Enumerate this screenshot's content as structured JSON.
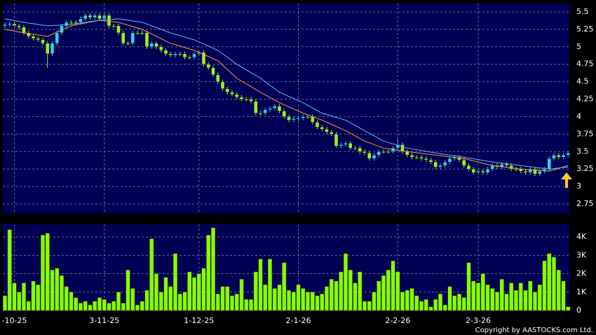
{
  "chart_data": [
    {
      "type": "candlestick",
      "open": [
        5.3,
        5.32,
        5.33,
        5.3,
        5.28,
        5.2,
        5.15,
        5.12,
        5.1,
        5.05,
        4.9,
        5.05,
        5.2,
        5.3,
        5.35,
        5.35,
        5.35,
        5.4,
        5.45,
        5.42,
        5.45,
        5.4,
        5.45,
        5.3,
        5.3,
        5.2,
        5.05,
        5.05,
        5.2,
        5.2,
        5.2,
        5.0,
        5.05,
        5.0,
        4.95,
        4.9,
        4.88,
        4.9,
        4.9,
        4.85,
        4.85,
        4.9,
        4.92,
        4.75,
        4.7,
        4.6,
        4.5,
        4.4,
        4.35,
        4.32,
        4.28,
        4.25,
        4.25,
        4.22,
        4.05,
        4.05,
        4.1,
        4.12,
        4.15,
        4.08,
        4.0,
        3.95,
        3.97,
        3.98,
        4.0,
        4.0,
        3.92,
        3.85,
        3.82,
        3.78,
        3.75,
        3.58,
        3.6,
        3.62,
        3.55,
        3.55,
        3.5,
        3.48,
        3.4,
        3.45,
        3.5,
        3.5,
        3.5,
        3.55,
        3.6,
        3.5,
        3.45,
        3.42,
        3.42,
        3.4,
        3.38,
        3.35,
        3.28,
        3.3,
        3.35,
        3.4,
        3.42,
        3.38,
        3.3,
        3.25,
        3.2,
        3.22,
        3.2,
        3.25,
        3.3,
        3.28,
        3.32,
        3.3,
        3.25,
        3.25,
        3.22,
        3.2,
        3.25,
        3.18,
        3.22,
        3.25,
        3.4,
        3.45,
        3.42,
        3.45
      ],
      "high": [
        5.35,
        5.36,
        5.36,
        5.33,
        5.31,
        5.23,
        5.18,
        5.15,
        5.13,
        5.08,
        5.08,
        5.23,
        5.33,
        5.38,
        5.38,
        5.38,
        5.43,
        5.48,
        5.48,
        5.48,
        5.48,
        5.48,
        5.48,
        5.33,
        5.33,
        5.23,
        5.08,
        5.23,
        5.23,
        5.23,
        5.23,
        5.08,
        5.08,
        5.03,
        4.98,
        4.93,
        4.93,
        4.93,
        4.93,
        4.88,
        4.93,
        4.95,
        4.95,
        4.78,
        4.73,
        4.63,
        4.53,
        4.43,
        4.38,
        4.35,
        4.31,
        4.28,
        4.28,
        4.25,
        4.08,
        4.13,
        4.15,
        4.18,
        4.18,
        4.11,
        4.03,
        4.0,
        4.01,
        4.03,
        4.03,
        4.03,
        3.95,
        3.88,
        3.85,
        3.81,
        3.78,
        3.63,
        3.65,
        3.65,
        3.58,
        3.58,
        3.53,
        3.51,
        3.48,
        3.53,
        3.53,
        3.53,
        3.58,
        3.7,
        3.63,
        3.53,
        3.48,
        3.45,
        3.45,
        3.43,
        3.41,
        3.38,
        3.33,
        3.38,
        3.43,
        3.45,
        3.45,
        3.41,
        3.33,
        3.28,
        3.25,
        3.25,
        3.28,
        3.33,
        3.33,
        3.35,
        3.35,
        3.33,
        3.28,
        3.28,
        3.25,
        3.28,
        3.28,
        3.25,
        3.28,
        3.43,
        3.48,
        3.48,
        3.48,
        3.51
      ],
      "low": [
        5.27,
        5.29,
        5.27,
        5.25,
        5.17,
        5.12,
        5.09,
        5.07,
        5.02,
        4.7,
        4.87,
        5.02,
        5.17,
        5.27,
        5.32,
        5.32,
        5.32,
        5.37,
        5.39,
        5.39,
        5.37,
        5.37,
        5.27,
        5.27,
        5.17,
        5.02,
        5.02,
        5.02,
        5.17,
        5.17,
        4.97,
        4.97,
        4.97,
        4.92,
        4.87,
        4.85,
        4.85,
        4.87,
        4.82,
        4.82,
        4.82,
        4.87,
        4.72,
        4.67,
        4.57,
        4.47,
        4.37,
        4.32,
        4.29,
        4.25,
        4.22,
        4.22,
        4.19,
        4.02,
        4.02,
        4.02,
        4.07,
        4.09,
        4.05,
        3.97,
        3.92,
        3.92,
        3.94,
        3.95,
        3.97,
        3.89,
        3.82,
        3.79,
        3.75,
        3.72,
        3.55,
        3.55,
        3.57,
        3.52,
        3.52,
        3.47,
        3.45,
        3.37,
        3.37,
        3.42,
        3.47,
        3.47,
        3.47,
        3.52,
        3.47,
        3.42,
        3.39,
        3.39,
        3.37,
        3.35,
        3.32,
        3.25,
        3.25,
        3.27,
        3.32,
        3.37,
        3.35,
        3.27,
        3.22,
        3.17,
        3.17,
        3.17,
        3.17,
        3.22,
        3.25,
        3.25,
        3.27,
        3.22,
        3.22,
        3.19,
        3.17,
        3.17,
        3.15,
        3.15,
        3.19,
        3.22,
        3.37,
        3.39,
        3.39,
        3.42
      ],
      "close": [
        5.32,
        5.33,
        5.3,
        5.28,
        5.2,
        5.15,
        5.12,
        5.1,
        5.05,
        4.9,
        5.05,
        5.2,
        5.3,
        5.35,
        5.35,
        5.35,
        5.4,
        5.45,
        5.42,
        5.45,
        5.4,
        5.45,
        5.3,
        5.3,
        5.2,
        5.05,
        5.05,
        5.2,
        5.2,
        5.2,
        5.0,
        5.05,
        5.0,
        4.95,
        4.9,
        4.88,
        4.9,
        4.9,
        4.85,
        4.85,
        4.9,
        4.92,
        4.75,
        4.7,
        4.6,
        4.5,
        4.4,
        4.35,
        4.32,
        4.28,
        4.25,
        4.25,
        4.22,
        4.05,
        4.05,
        4.1,
        4.12,
        4.15,
        4.08,
        4.0,
        3.95,
        3.97,
        3.98,
        4.0,
        4.0,
        3.92,
        3.85,
        3.82,
        3.78,
        3.75,
        3.58,
        3.6,
        3.62,
        3.55,
        3.55,
        3.5,
        3.48,
        3.4,
        3.45,
        3.5,
        3.5,
        3.5,
        3.55,
        3.6,
        3.5,
        3.45,
        3.42,
        3.42,
        3.4,
        3.38,
        3.35,
        3.28,
        3.3,
        3.35,
        3.4,
        3.42,
        3.38,
        3.3,
        3.25,
        3.2,
        3.22,
        3.2,
        3.25,
        3.3,
        3.28,
        3.32,
        3.3,
        3.25,
        3.25,
        3.22,
        3.2,
        3.25,
        3.18,
        3.22,
        3.25,
        3.4,
        3.45,
        3.42,
        3.45,
        3.48
      ],
      "up_color": "#33ccff",
      "down_color": "#99ee33",
      "lines": [
        {
          "color": "#ff9933",
          "x": [
            0,
            4,
            9,
            14,
            20,
            24,
            29,
            35,
            40,
            45,
            49,
            54,
            58,
            63,
            67,
            72,
            76,
            80,
            85,
            91,
            97,
            103,
            109,
            115,
            119
          ],
          "values": [
            5.25,
            5.2,
            5.15,
            5.3,
            5.38,
            5.35,
            5.25,
            5.05,
            4.95,
            4.8,
            4.55,
            4.35,
            4.2,
            4.05,
            3.95,
            3.8,
            3.65,
            3.55,
            3.5,
            3.45,
            3.4,
            3.3,
            3.25,
            3.22,
            3.3
          ]
        },
        {
          "color": "#66bbff",
          "x": [
            0,
            4,
            9,
            14,
            20,
            24,
            29,
            35,
            40,
            45,
            49,
            54,
            58,
            63,
            67,
            72,
            76,
            80,
            85,
            91,
            97,
            103,
            109,
            115,
            119
          ],
          "values": [
            5.4,
            5.35,
            5.3,
            5.32,
            5.38,
            5.4,
            5.35,
            5.2,
            5.1,
            4.95,
            4.75,
            4.55,
            4.35,
            4.2,
            4.05,
            3.95,
            3.8,
            3.65,
            3.55,
            3.48,
            3.42,
            3.35,
            3.3,
            3.25,
            3.28
          ]
        }
      ],
      "ylim": [
        2.61,
        5.62
      ],
      "yticks": [
        2.75,
        3,
        3.25,
        3.5,
        3.75,
        4,
        4.25,
        4.5,
        4.75,
        5,
        5.25,
        5.5
      ],
      "grid": true
    },
    {
      "type": "bar",
      "categories": [
        null,
        null,
        "-10-25",
        null,
        null,
        null,
        null,
        null,
        null,
        null,
        null,
        null,
        null,
        null,
        null,
        null,
        null,
        null,
        null,
        null,
        null,
        "3-11-25",
        null,
        null,
        null,
        null,
        null,
        null,
        null,
        null,
        null,
        null,
        null,
        null,
        null,
        null,
        null,
        null,
        null,
        null,
        null,
        "1-12-25",
        null,
        null,
        null,
        null,
        null,
        null,
        null,
        null,
        null,
        null,
        null,
        null,
        null,
        null,
        null,
        null,
        null,
        null,
        null,
        null,
        "2-1-26",
        null,
        null,
        null,
        null,
        null,
        null,
        null,
        null,
        null,
        null,
        null,
        null,
        null,
        null,
        null,
        null,
        null,
        null,
        null,
        null,
        "2-2-26",
        null,
        null,
        null,
        null,
        null,
        null,
        null,
        null,
        null,
        null,
        null,
        null,
        null,
        null,
        null,
        null,
        "2-3-26",
        null,
        null,
        null,
        null,
        null,
        null,
        null,
        null,
        null,
        null,
        null,
        null,
        null,
        null,
        null,
        null,
        null,
        null,
        null
      ],
      "values": [
        800,
        4400,
        1500,
        1000,
        1500,
        500,
        1600,
        1400,
        4100,
        4200,
        2200,
        2300,
        1900,
        1300,
        1000,
        700,
        400,
        500,
        300,
        500,
        700,
        600,
        400,
        500,
        1000,
        400,
        2200,
        1200,
        300,
        500,
        1100,
        3900,
        2000,
        1000,
        1800,
        1300,
        3100,
        900,
        1000,
        2100,
        1800,
        2000,
        2300,
        4100,
        4500,
        900,
        1300,
        1300,
        800,
        900,
        1700,
        600,
        600,
        2100,
        2800,
        1400,
        2800,
        1200,
        1400,
        2600,
        1100,
        1000,
        1400,
        1200,
        1000,
        1000,
        800,
        900,
        1300,
        1700,
        1600,
        2100,
        3100,
        2200,
        1500,
        2100,
        500,
        500,
        1000,
        1600,
        1900,
        2200,
        2700,
        2100,
        1000,
        1100,
        1200,
        800,
        500,
        600,
        200,
        600,
        900,
        300,
        1300,
        800,
        900,
        700,
        2600,
        1600,
        1500,
        2000,
        1400,
        1200,
        1000,
        1700,
        900,
        1500,
        1100,
        1500,
        1100,
        1600,
        1000,
        1400,
        2700,
        3100,
        2900,
        2200,
        1600,
        200
      ],
      "color": "#88ff00",
      "ylim": [
        0,
        4690
      ],
      "yticks": [
        0,
        {
          "value": 1000,
          "label": "1K"
        },
        {
          "value": 2000,
          "label": "2K"
        },
        {
          "value": 3000,
          "label": "3K"
        },
        {
          "value": 4000,
          "label": "4K"
        }
      ],
      "grid": true
    }
  ],
  "copyright": "Copyright by AASTOCKS.com Ltd."
}
